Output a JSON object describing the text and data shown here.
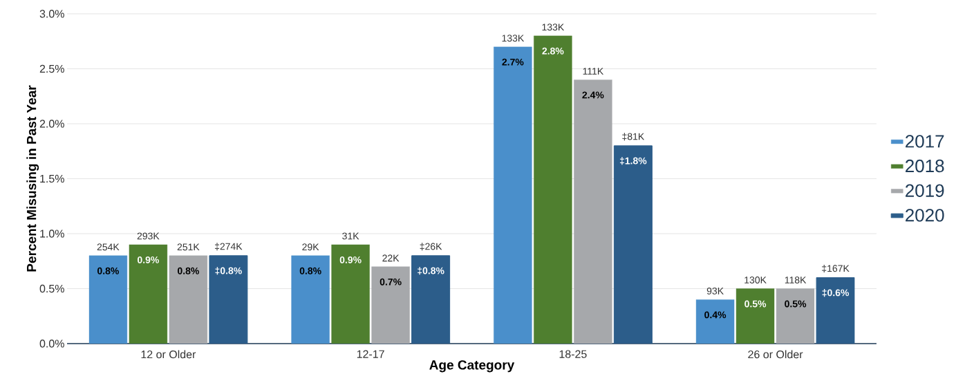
{
  "chart_data": {
    "type": "bar",
    "xlabel": "Age Category",
    "ylabel": "Percent Misusing in Past Year",
    "categories": [
      "12 or Older",
      "12-17",
      "18-25",
      "26 or Older"
    ],
    "series": [
      {
        "name": "2017",
        "color": "#4a8fcb",
        "values": [
          0.8,
          0.8,
          2.7,
          0.4
        ],
        "value_labels": [
          "0.8%",
          "0.8%",
          "2.7%",
          "0.4%"
        ]
      },
      {
        "name": "2018",
        "color": "#4f7f2f",
        "values": [
          0.9,
          0.9,
          2.8,
          0.5
        ],
        "value_labels": [
          "0.9%",
          "0.9%",
          "2.8%",
          "0.5%"
        ]
      },
      {
        "name": "2019",
        "color": "#a6a8ab",
        "values": [
          0.8,
          0.7,
          2.4,
          0.5
        ],
        "value_labels": [
          "0.8%",
          "0.7%",
          "2.4%",
          "0.5%"
        ]
      },
      {
        "name": "2020",
        "color": "#2c5d8a",
        "values": [
          0.8,
          0.8,
          1.8,
          0.6
        ],
        "value_labels": [
          "‡0.8%",
          "‡0.8%",
          "‡1.8%",
          "‡0.6%"
        ]
      }
    ],
    "annotations": [
      "254K",
      "293K",
      "251K",
      "‡274K",
      "29K",
      "31K",
      "22K",
      "‡26K",
      "133K",
      "133K",
      "111K",
      "‡81K",
      "93K",
      "130K",
      "118K",
      "‡167K"
    ],
    "ylim": [
      0,
      3
    ],
    "yticks": [
      {
        "value": 0,
        "label": "0.0%"
      },
      {
        "value": 0.5,
        "label": "0.5%"
      },
      {
        "value": 1,
        "label": "1.0%"
      },
      {
        "value": 1.5,
        "label": "1.5%"
      },
      {
        "value": 2,
        "label": "2.0%"
      },
      {
        "value": 2.5,
        "label": "2.5%"
      },
      {
        "value": 3,
        "label": "3.0%"
      }
    ],
    "grid": "y",
    "legend": "right"
  }
}
